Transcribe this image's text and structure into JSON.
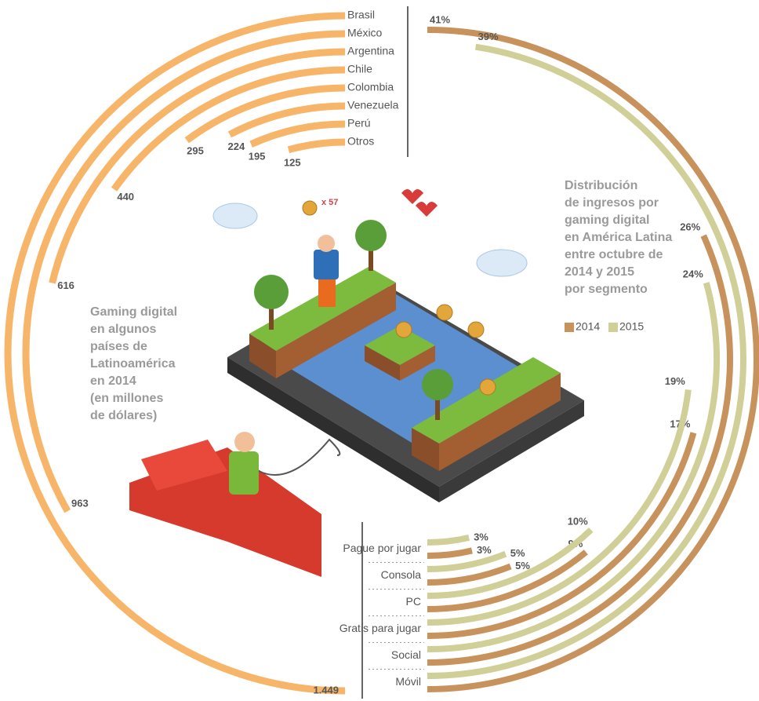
{
  "chart_data": [
    {
      "type": "radial_bar",
      "title_lines": [
        "Gaming digital",
        "en algunos",
        "países de",
        "Latinoamérica",
        "en 2014",
        "(en  millones",
        "de dólares)"
      ],
      "categories": [
        "Brasil",
        "México",
        "Argentina",
        "Chile",
        "Colombia",
        "Venezuela",
        "Perú",
        "Otros"
      ],
      "values": [
        1449,
        963,
        616,
        440,
        295,
        224,
        195,
        125
      ],
      "value_labels": [
        "1.449",
        "963",
        "616",
        "440",
        "295",
        "224",
        "195",
        "125"
      ],
      "color": "#f7b56a"
    },
    {
      "type": "radial_bar",
      "title_lines": [
        "Distribución",
        "de ingresos por",
        "gaming digital",
        "en América Latina",
        "entre octubre de",
        "2014 y 2015",
        "por segmento"
      ],
      "categories": [
        "Móvil",
        "Social",
        "Gratis para jugar",
        "PC",
        "Consola",
        "Pague por jugar"
      ],
      "series": [
        {
          "name": "2014",
          "color": "#c8925c",
          "values": [
            41,
            26,
            17,
            9,
            5,
            3
          ],
          "value_labels": [
            "41%",
            "26%",
            "17%",
            "9%",
            "5%",
            "3%"
          ]
        },
        {
          "name": "2015",
          "color": "#d0cf98",
          "values": [
            39,
            24,
            19,
            10,
            5,
            3
          ],
          "value_labels": [
            "39%",
            "24%",
            "19%",
            "10%",
            "5%",
            "3%"
          ]
        }
      ]
    }
  ],
  "illustration": {
    "coin_label": "x 57"
  }
}
